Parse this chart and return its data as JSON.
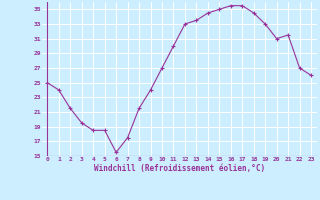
{
  "x": [
    0,
    1,
    2,
    3,
    4,
    5,
    6,
    7,
    8,
    9,
    10,
    11,
    12,
    13,
    14,
    15,
    16,
    17,
    18,
    19,
    20,
    21,
    22,
    23
  ],
  "y": [
    25,
    24,
    21.5,
    19.5,
    18.5,
    18.5,
    15.5,
    17.5,
    21.5,
    24,
    27,
    30,
    33,
    33.5,
    34.5,
    35,
    35.5,
    35.5,
    34.5,
    33,
    31,
    31.5,
    27,
    26
  ],
  "line_color": "#993399",
  "marker": "+",
  "bg_color": "#cceeff",
  "grid_color": "#ffffff",
  "xlabel": "Windchill (Refroidissement éolien,°C)",
  "xlabel_color": "#993399",
  "tick_color": "#993399",
  "ylim": [
    15,
    36
  ],
  "yticks": [
    15,
    17,
    19,
    21,
    23,
    25,
    27,
    29,
    31,
    33,
    35
  ],
  "xlim": [
    -0.5,
    23.5
  ]
}
